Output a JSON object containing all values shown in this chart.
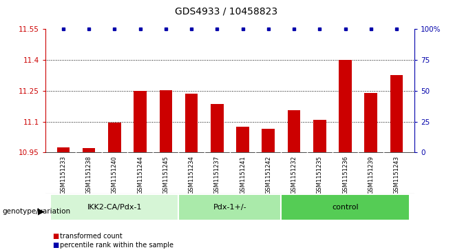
{
  "title": "GDS4933 / 10458823",
  "samples": [
    "GSM1151233",
    "GSM1151238",
    "GSM1151240",
    "GSM1151244",
    "GSM1151245",
    "GSM1151234",
    "GSM1151237",
    "GSM1151241",
    "GSM1151242",
    "GSM1151232",
    "GSM1151235",
    "GSM1151236",
    "GSM1151239",
    "GSM1151243"
  ],
  "bar_values": [
    10.975,
    10.972,
    11.095,
    11.25,
    11.253,
    11.235,
    11.185,
    11.075,
    11.065,
    11.155,
    11.11,
    11.4,
    11.24,
    11.325
  ],
  "bar_color": "#cc0000",
  "percentile_color": "#0000aa",
  "ylim_left": [
    10.95,
    11.55
  ],
  "ylim_right": [
    0,
    100
  ],
  "yticks_left": [
    10.95,
    11.1,
    11.25,
    11.4,
    11.55
  ],
  "yticks_right": [
    0,
    25,
    50,
    75,
    100
  ],
  "ytick_labels_right": [
    "0",
    "25",
    "50",
    "75",
    "100%"
  ],
  "gridlines": [
    11.1,
    11.25,
    11.4
  ],
  "groups": [
    {
      "label": "IKK2-CA/Pdx-1",
      "start": 0,
      "end": 5,
      "color": "#d6f5d6"
    },
    {
      "label": "Pdx-1+/-",
      "start": 5,
      "end": 9,
      "color": "#aaeaaa"
    },
    {
      "label": "control",
      "start": 9,
      "end": 14,
      "color": "#55cc55"
    }
  ],
  "genotype_label": "genotype/variation",
  "legend_items": [
    {
      "label": "transformed count",
      "color": "#cc0000"
    },
    {
      "label": "percentile rank within the sample",
      "color": "#0000aa"
    }
  ],
  "background_color": "#ffffff",
  "bar_width": 0.5
}
